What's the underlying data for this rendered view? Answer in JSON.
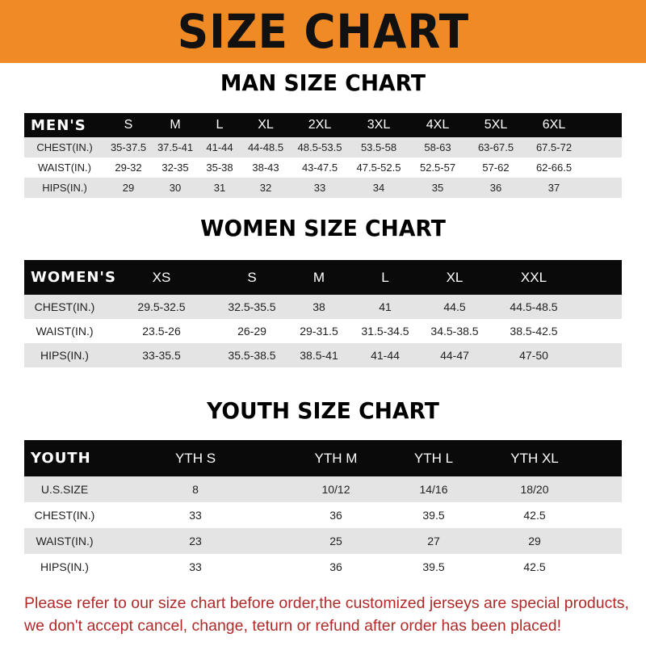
{
  "banner": "SIZE CHART",
  "men": {
    "title": "MAN SIZE CHART",
    "header": [
      "MEN'S",
      "S",
      "M",
      "L",
      "XL",
      "2XL",
      "3XL",
      "4XL",
      "5XL",
      "6XL"
    ],
    "rows": [
      [
        "CHEST(IN.)",
        "35-37.5",
        "37.5-41",
        "41-44",
        "44-48.5",
        "48.5-53.5",
        "53.5-58",
        "58-63",
        "63-67.5",
        "67.5-72"
      ],
      [
        "WAIST(IN.)",
        "29-32",
        "32-35",
        "35-38",
        "38-43",
        "43-47.5",
        "47.5-52.5",
        "52.5-57",
        "57-62",
        "62-66.5"
      ],
      [
        "HIPS(IN.)",
        "29",
        "30",
        "31",
        "32",
        "33",
        "34",
        "35",
        "36",
        "37"
      ]
    ]
  },
  "women": {
    "title": "WOMEN SIZE CHART",
    "header": [
      "WOMEN'S",
      "XS",
      "S",
      "M",
      "L",
      "XL",
      "XXL"
    ],
    "rows": [
      [
        "CHEST(IN.)",
        "29.5-32.5",
        "32.5-35.5",
        "38",
        "41",
        "44.5",
        "44.5-48.5"
      ],
      [
        "WAIST(IN.)",
        "23.5-26",
        "26-29",
        "29-31.5",
        "31.5-34.5",
        "34.5-38.5",
        "38.5-42.5"
      ],
      [
        "HIPS(IN.)",
        "33-35.5",
        "35.5-38.5",
        "38.5-41",
        "41-44",
        "44-47",
        "47-50"
      ]
    ]
  },
  "youth": {
    "title": "YOUTH SIZE CHART",
    "header": [
      "YOUTH",
      "YTH S",
      "YTH M",
      "YTH L",
      "YTH XL"
    ],
    "rows": [
      [
        "U.S.SIZE",
        "8",
        "10/12",
        "14/16",
        "18/20"
      ],
      [
        "CHEST(IN.)",
        "33",
        "36",
        "39.5",
        "42.5"
      ],
      [
        "WAIST(IN.)",
        "23",
        "25",
        "27",
        "29"
      ],
      [
        "HIPS(IN.)",
        "33",
        "36",
        "39.5",
        "42.5"
      ]
    ]
  },
  "note": "Please refer to our size chart before order,the customized jerseys are special products, we don't accept cancel, change, teturn or refund after order has been placed!",
  "colors": {
    "banner": "#f08a24",
    "header_row": "#0a0a0a",
    "shaded_row": "#e4e4e4",
    "note": "#b02a2a"
  }
}
